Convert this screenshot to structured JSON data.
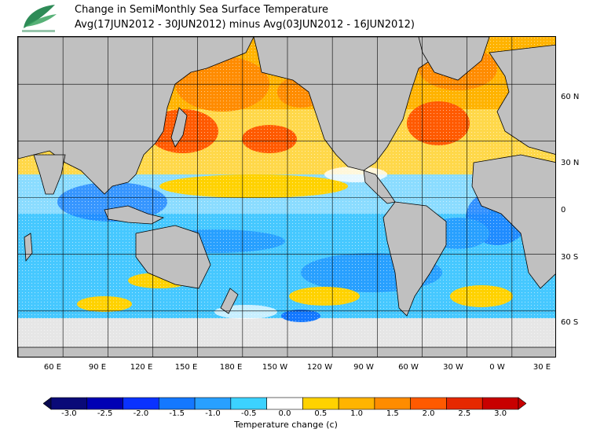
{
  "title": {
    "line1": "Change in SemiMonthly Sea Surface Temperature",
    "line2": "Avg(17JUN2012 - 30JUN2012) minus Avg(03JUN2012 - 16JUN2012)"
  },
  "logo": {
    "name": "leaf-logo",
    "caption": ""
  },
  "map": {
    "projection": "cylindrical equidistant",
    "lon_range": [
      30,
      390
    ],
    "lat_range": [
      -85,
      85
    ],
    "land_color": "#c0c0c0",
    "sea_ice_color": "#e6e6e6",
    "lat_labels": [
      "60 N",
      "30 N",
      "0",
      "30 S",
      "60 S"
    ],
    "lon_labels": [
      "60 E",
      "90 E",
      "120 E",
      "150 E",
      "180 E",
      "150 W",
      "120 W",
      "90 W",
      "60 W",
      "30 W",
      "0 W",
      "30 E"
    ]
  },
  "colorbar": {
    "label": "Temperature change  (c)",
    "ticks": [
      "-3.0",
      "-2.5",
      "-2.0",
      "-1.5",
      "-1.0",
      "-0.5",
      "0.0",
      "0.5",
      "1.0",
      "1.5",
      "2.0",
      "2.5",
      "3.0"
    ],
    "colors": [
      "#0a0a78",
      "#0000b4",
      "#0a32ff",
      "#1478ff",
      "#28a0ff",
      "#3cd2ff",
      "#ffffff",
      "#ffd200",
      "#ffb400",
      "#ff8c00",
      "#ff5a00",
      "#e62800",
      "#c80000"
    ],
    "under_color": "#0a0a50",
    "over_color": "#c80000"
  }
}
